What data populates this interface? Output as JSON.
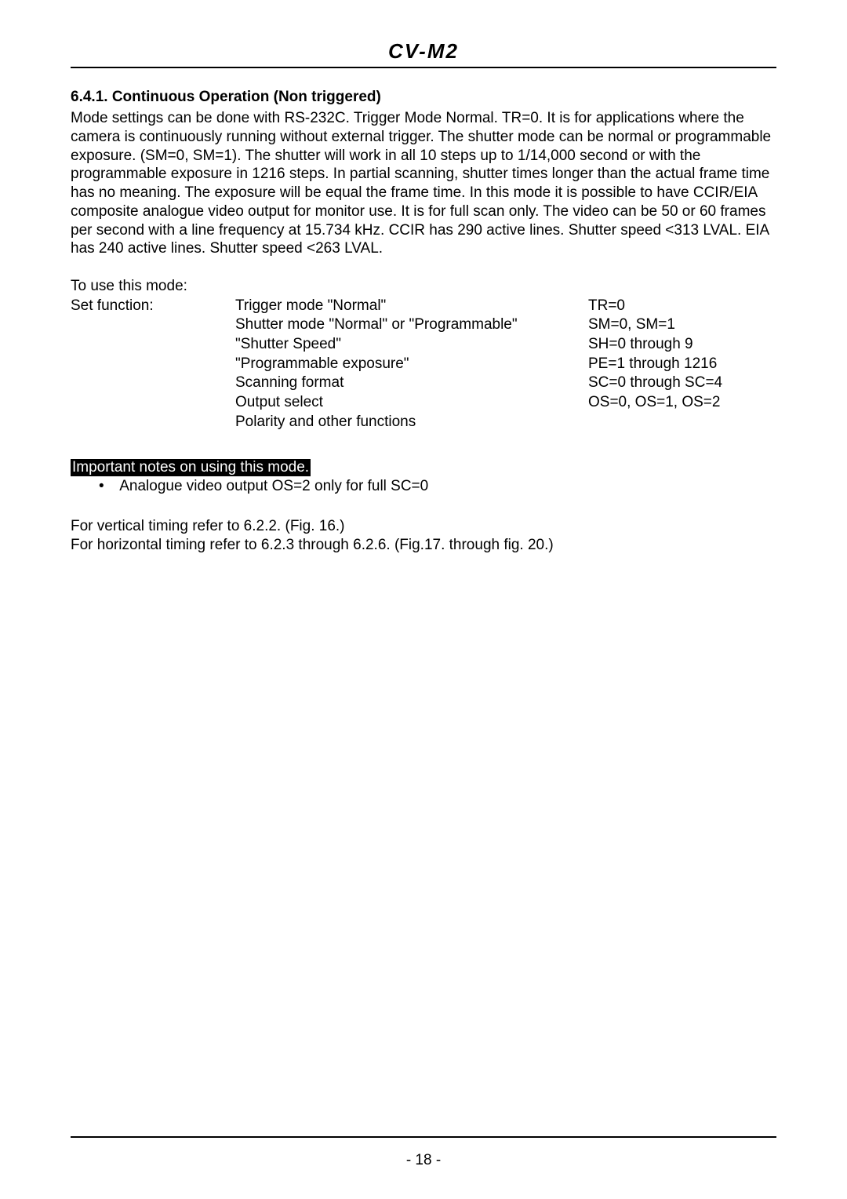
{
  "header": {
    "title": "CV-M2"
  },
  "section": {
    "heading": "6.4.1. Continuous Operation (Non triggered)",
    "body": "Mode settings can be done with RS-232C. Trigger Mode Normal. TR=0. It is for applications where the camera is continuously running without external trigger. The shutter mode can be normal or programmable exposure. (SM=0, SM=1). The shutter will work in all 10 steps up to 1/14,000 second or with the programmable exposure in 1216 steps. In partial scanning, shutter times longer than the actual frame time has no meaning. The exposure will be equal the frame time. In this mode it is possible to have CCIR/EIA composite analogue video output for monitor use. It is for full scan only. The video can be 50 or 60 frames per second with a line frequency at 15.734 kHz. CCIR has 290 active lines. Shutter speed <313 LVAL. EIA has 240 active lines. Shutter speed <263 LVAL."
  },
  "mode": {
    "intro": "To use this mode:",
    "label": "Set function:",
    "rows": [
      {
        "mid": "Trigger mode \"Normal\"",
        "right": "TR=0"
      },
      {
        "mid": "Shutter mode \"Normal\" or \"Programmable\"",
        "right": "SM=0, SM=1"
      },
      {
        "mid": "\"Shutter Speed\"",
        "right": "SH=0 through 9"
      },
      {
        "mid": "\"Programmable exposure\"",
        "right": "PE=1 through 1216"
      },
      {
        "mid": "Scanning format",
        "right": "SC=0 through SC=4"
      },
      {
        "mid": "Output select",
        "right": "OS=0, OS=1, OS=2"
      },
      {
        "mid": "Polarity and other functions",
        "right": ""
      }
    ]
  },
  "important": {
    "label": "Important notes on using this mode.",
    "bullet": "Analogue video output OS=2 only for full SC=0"
  },
  "refs": {
    "line1": "For vertical timing refer to 6.2.2. (Fig. 16.)",
    "line2": "For horizontal timing refer to 6.2.3 through 6.2.6. (Fig.17. through fig. 20.)"
  },
  "footer": {
    "page": "- 18 -"
  }
}
